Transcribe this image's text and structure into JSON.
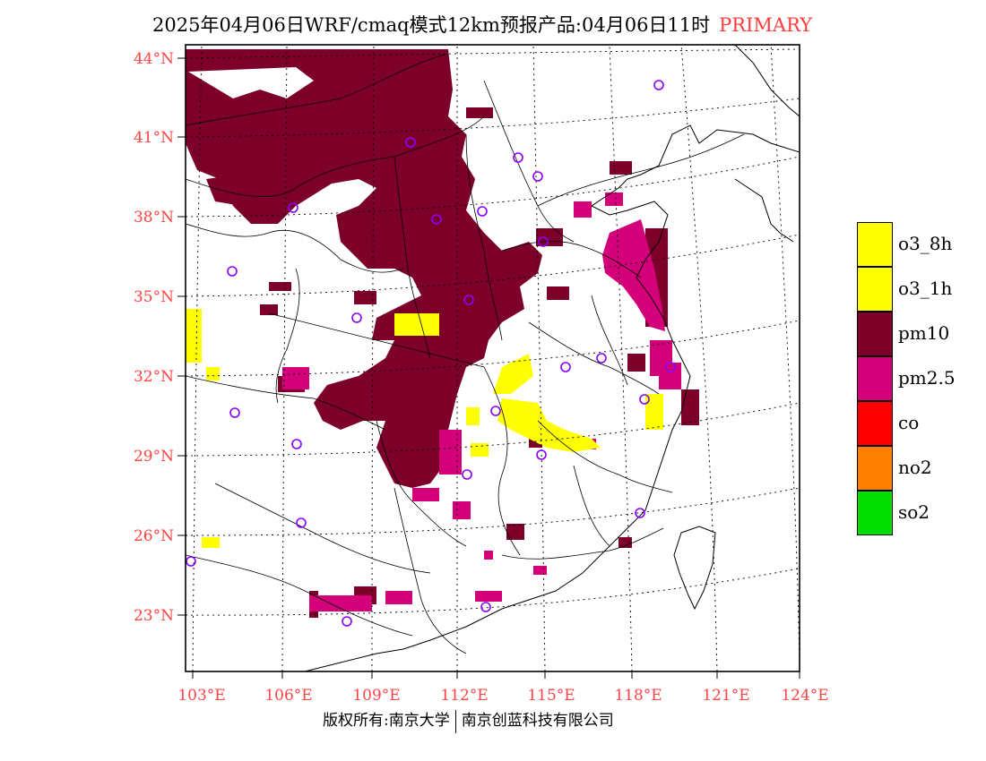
{
  "title": {
    "main": "2025年04月06日WRF/cmaq模式12km预报产品:04月06日11时",
    "tag": "PRIMARY",
    "tag_color": "#ff3b3b"
  },
  "axes": {
    "lat_labels": [
      "44°N",
      "41°N",
      "38°N",
      "35°N",
      "32°N",
      "29°N",
      "26°N",
      "23°N"
    ],
    "lon_labels": [
      "103°E",
      "106°E",
      "109°E",
      "112°E",
      "115°E",
      "118°E",
      "121°E",
      "124°E"
    ],
    "label_color": "#ff4444"
  },
  "legend": [
    {
      "label": "o3_8h",
      "color": "#ffff00"
    },
    {
      "label": "o3_1h",
      "color": "#ffff00"
    },
    {
      "label": "pm10",
      "color": "#7d0028"
    },
    {
      "label": "pm2.5",
      "color": "#d4007a"
    },
    {
      "label": "co",
      "color": "#ff0000"
    },
    {
      "label": "no2",
      "color": "#ff7f00"
    },
    {
      "label": "so2",
      "color": "#00dd00"
    }
  ],
  "footer": {
    "left": "版权所有:南京大学",
    "right": "南京创蓝科技有限公司"
  }
}
